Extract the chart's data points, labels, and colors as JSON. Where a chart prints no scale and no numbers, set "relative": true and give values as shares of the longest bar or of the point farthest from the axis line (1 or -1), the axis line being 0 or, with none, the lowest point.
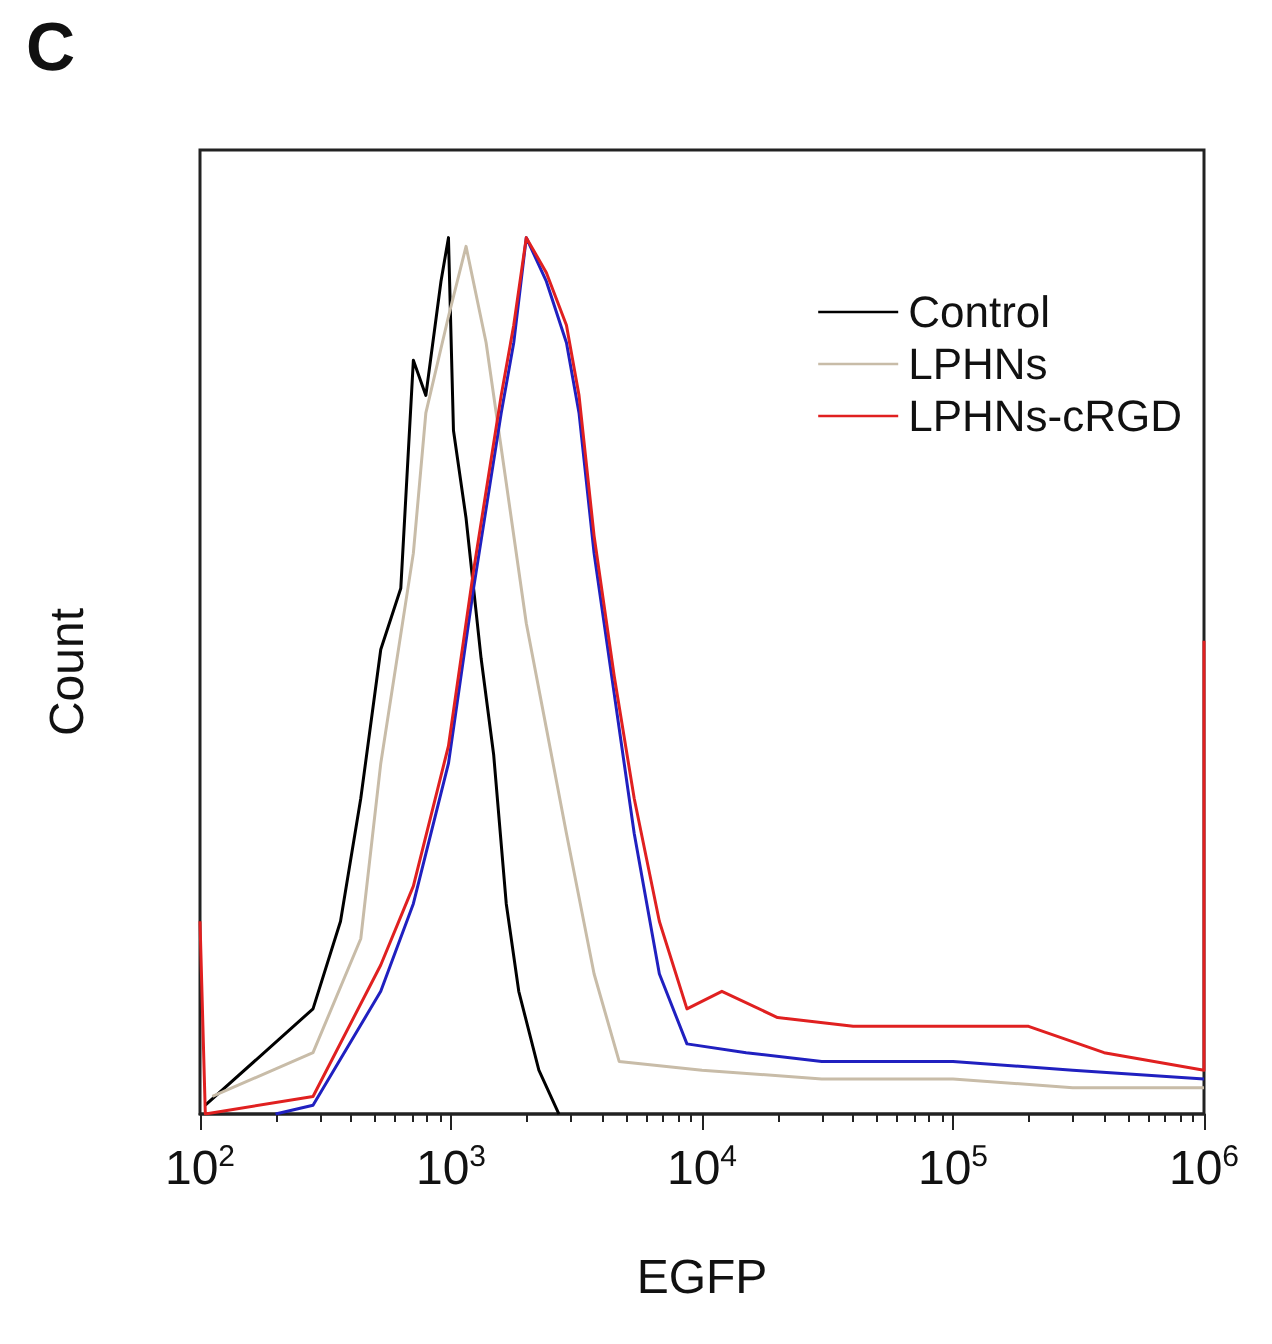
{
  "chart_data": {
    "type": "line",
    "title": "C",
    "xlabel": "EGFP",
    "ylabel": "Count",
    "relative": true,
    "log": "x",
    "xlim": [
      100,
      1000000
    ],
    "xticks": [
      {
        "value": 100,
        "label": "10$^{2}$"
      },
      {
        "value": 1000,
        "label": "10$^{3}$"
      },
      {
        "value": 10000,
        "label": "10$^{4}$"
      },
      {
        "value": 100000,
        "label": "10$^{5}$"
      },
      {
        "value": 1000000,
        "label": "10$^{6}$"
      }
    ],
    "legend": "top right",
    "grid": false,
    "marker": "none",
    "line_style": "solid",
    "series": [
      {
        "name": "Control",
        "color": "#000000",
        "x": [
          105,
          282,
          363,
          437,
          525,
          631,
          708,
          794,
          912,
          977,
          1023,
          1148,
          1318,
          1479,
          1660,
          1862,
          2239,
          2692
        ],
        "values": [
          0.01,
          0.12,
          0.22,
          0.36,
          0.53,
          0.6,
          0.86,
          0.82,
          0.95,
          1.0,
          0.78,
          0.68,
          0.52,
          0.41,
          0.24,
          0.14,
          0.05,
          0
        ]
      },
      {
        "name": "LPHNs",
        "color": "#c8bca8",
        "x": [
          112,
          282,
          437,
          525,
          708,
          794,
          977,
          1148,
          1380,
          1660,
          1995,
          2399,
          2884,
          3715,
          4677,
          10000,
          30000,
          100000,
          300000,
          1000000
        ],
        "values": [
          0.02,
          0.07,
          0.2,
          0.4,
          0.64,
          0.8,
          0.91,
          0.99,
          0.88,
          0.72,
          0.56,
          0.44,
          0.32,
          0.16,
          0.06,
          0.05,
          0.04,
          0.04,
          0.03,
          0.03
        ]
      },
      {
        "color": "#2020c0",
        "x": [
          200,
          282,
          525,
          708,
          977,
          1230,
          1585,
          1778,
          1995,
          2399,
          2884,
          3236,
          3715,
          4467,
          5370,
          6761,
          8710,
          15000,
          30000,
          100000,
          300000,
          1000000
        ],
        "values": [
          0,
          0.01,
          0.14,
          0.24,
          0.4,
          0.6,
          0.8,
          0.88,
          1.0,
          0.95,
          0.88,
          0.8,
          0.64,
          0.48,
          0.32,
          0.16,
          0.08,
          0.07,
          0.06,
          0.06,
          0.05,
          0.04
        ]
      },
      {
        "name": "LPHNs-cRGD",
        "color": "#e02020",
        "x": [
          100,
          105,
          282,
          525,
          708,
          977,
          1230,
          1585,
          1778,
          1995,
          2399,
          2884,
          3236,
          3715,
          4467,
          5370,
          6761,
          8710,
          12000,
          20000,
          40000,
          100000,
          200000,
          400000,
          1000000,
          1000000
        ],
        "values": [
          0.22,
          0,
          0.02,
          0.17,
          0.26,
          0.42,
          0.62,
          0.82,
          0.9,
          1.0,
          0.96,
          0.9,
          0.82,
          0.66,
          0.5,
          0.36,
          0.22,
          0.12,
          0.14,
          0.11,
          0.1,
          0.1,
          0.1,
          0.07,
          0.05,
          0.54
        ]
      }
    ]
  }
}
